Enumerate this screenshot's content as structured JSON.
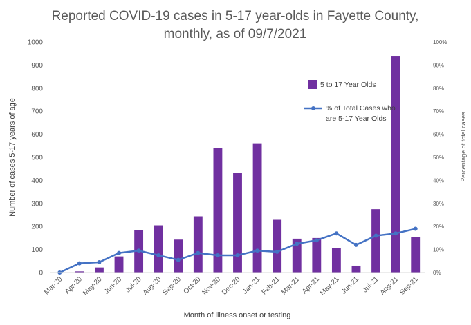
{
  "chart_data": {
    "type": "bar",
    "title_lines": [
      "Reported COVID-19 cases in 5-17 year-olds in Fayette County,",
      "monthly, as of 09/7/2021"
    ],
    "xlabel": "Month of illness onset or testing",
    "ylabel": "Number of cases 5-17 years of age",
    "y2label": "Percentage of total cases",
    "ylim": [
      0,
      1000
    ],
    "y2lim": [
      0,
      100
    ],
    "y_ticks": [
      "0",
      "100",
      "200",
      "300",
      "400",
      "500",
      "600",
      "700",
      "800",
      "900",
      "1000"
    ],
    "y2_ticks": [
      "0%",
      "10%",
      "20%",
      "30%",
      "40%",
      "50%",
      "60%",
      "70%",
      "80%",
      "90%",
      "100%"
    ],
    "categories": [
      "Mar-20",
      "Apr-20",
      "May-20",
      "Jun-20",
      "Jul-20",
      "Aug-20",
      "Sep-20",
      "Oct-20",
      "Nov-20",
      "Dec-20",
      "Jan-21",
      "Feb-21",
      "Mar-21",
      "Apr-21",
      "May-21",
      "Jun-21",
      "Jul-21",
      "Aug-21",
      "Sep-21"
    ],
    "series": [
      {
        "name": "5 to 17 Year Olds",
        "kind": "bar",
        "axis": "left",
        "color": "#7030a0",
        "values": [
          0,
          5,
          22,
          70,
          185,
          205,
          143,
          244,
          540,
          432,
          561,
          229,
          147,
          150,
          106,
          30,
          275,
          940,
          155
        ]
      },
      {
        "name": "% of Total Cases who are 5-17 Year Olds",
        "kind": "line",
        "axis": "right",
        "color": "#4472c4",
        "values": [
          0,
          4,
          4.5,
          8.5,
          9.5,
          7.5,
          5.5,
          8.5,
          7.5,
          7.5,
          9.5,
          9,
          12.5,
          14,
          17,
          12,
          16,
          17,
          19
        ]
      }
    ],
    "legend_placement": "top-right",
    "legend_lines": [
      [
        "5 to 17 Year Olds"
      ],
      [
        "% of Total Cases who",
        "are 5-17 Year Olds"
      ]
    ],
    "grid": false
  }
}
